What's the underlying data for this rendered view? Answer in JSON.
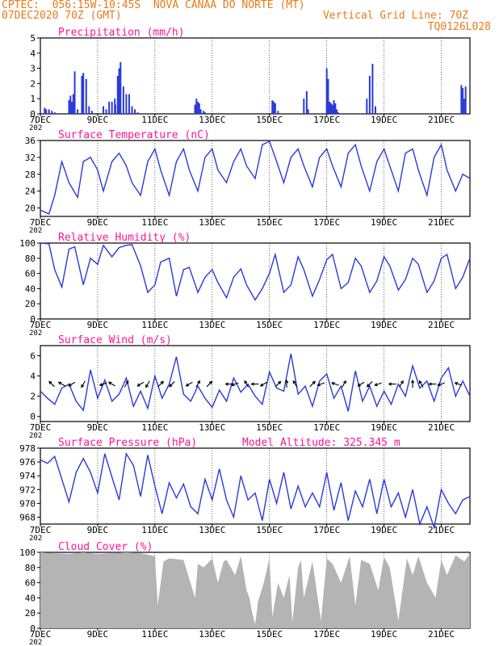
{
  "header": {
    "line1_left": "CPTEC:  056:15W-10:45S  NOVA CANAA DO NORTE (MT)",
    "line2_left": "07DEC2020 70Z (GMT)",
    "line2_right": "Vertical Grid Line: 70Z",
    "line3_right": "TQ0126L028"
  },
  "colors": {
    "header": "#e87a1a",
    "panel_title": "#ff1493",
    "line": "#2a3ad8",
    "bar": "#2a3ad8",
    "cloud": "#b4b4b4",
    "wind_arrow": "#000000"
  },
  "x_axis": {
    "ticks": [
      "7DEC",
      "9DEC",
      "11DEC",
      "13DEC",
      "15DEC",
      "17DEC",
      "19DEC",
      "21DEC"
    ],
    "tick_days": [
      0,
      2,
      4,
      6,
      8,
      10,
      12,
      14
    ],
    "start_cut_label": "202",
    "days_total": 15
  },
  "chart_data": [
    {
      "type": "bar",
      "title": "Precipitation (mm/h)",
      "ylim": [
        0,
        5
      ],
      "yticks": [
        0,
        1,
        2,
        3,
        4,
        5
      ],
      "x_unit": "days since 7DEC2020 00Z",
      "x": [
        0.15,
        0.2,
        0.3,
        0.4,
        0.5,
        1.0,
        1.05,
        1.1,
        1.15,
        1.2,
        1.3,
        1.45,
        1.5,
        1.6,
        1.7,
        1.8,
        2.2,
        2.3,
        2.4,
        2.5,
        2.6,
        2.62,
        2.7,
        2.75,
        2.8,
        2.9,
        3.0,
        3.1,
        3.2,
        3.3,
        3.4,
        5.4,
        5.45,
        5.5,
        5.55,
        5.6,
        5.7,
        5.75,
        8.1,
        8.15,
        8.2,
        8.3,
        9.2,
        9.3,
        9.35,
        10.0,
        10.05,
        10.1,
        10.15,
        10.2,
        10.25,
        10.3,
        10.35,
        10.4,
        11.4,
        11.5,
        11.6,
        11.7,
        14.7,
        14.75,
        14.8,
        14.85
      ],
      "values": [
        0.4,
        0.3,
        0.3,
        0.2,
        0.1,
        0.9,
        1.2,
        0.8,
        1.3,
        2.8,
        0.3,
        2.5,
        2.7,
        2.3,
        0.5,
        0.2,
        0.5,
        0.3,
        0.8,
        0.8,
        1.0,
        0.6,
        2.5,
        3.0,
        3.4,
        1.8,
        1.3,
        1.3,
        0.5,
        0.3,
        0.1,
        0.6,
        1.0,
        0.8,
        0.7,
        0.3,
        0.2,
        0.1,
        0.9,
        0.8,
        0.7,
        0.2,
        1.0,
        1.5,
        0.3,
        3.0,
        2.3,
        0.8,
        0.7,
        0.6,
        0.9,
        0.7,
        0.3,
        0.1,
        1.0,
        2.5,
        3.3,
        0.5,
        1.9,
        1.7,
        1.0,
        1.8
      ]
    },
    {
      "type": "line",
      "title": "Surface Temperature (nC)",
      "ylim": [
        18,
        36
      ],
      "yticks": [
        20,
        24,
        28,
        32,
        36
      ],
      "x_unit": "days since 7DEC2020 00Z",
      "x": [
        0,
        0.3,
        0.5,
        0.75,
        1,
        1.3,
        1.5,
        1.75,
        2,
        2.2,
        2.5,
        2.75,
        3,
        3.2,
        3.5,
        3.75,
        4,
        4.2,
        4.5,
        4.75,
        5,
        5.2,
        5.5,
        5.75,
        6,
        6.2,
        6.5,
        6.75,
        7,
        7.2,
        7.5,
        7.75,
        8,
        8.2,
        8.5,
        8.75,
        9,
        9.2,
        9.5,
        9.75,
        10,
        10.2,
        10.5,
        10.75,
        11,
        11.2,
        11.5,
        11.75,
        12,
        12.2,
        12.5,
        12.75,
        13,
        13.2,
        13.5,
        13.75,
        14,
        14.2,
        14.5,
        14.75,
        15
      ],
      "values": [
        19.5,
        18.6,
        23,
        31,
        26,
        22.5,
        31,
        32,
        29,
        24,
        31,
        33,
        30,
        26,
        23,
        31,
        34,
        29,
        23,
        31,
        34,
        29,
        24,
        32,
        34,
        29,
        26,
        31,
        34,
        30,
        27,
        35,
        35.8,
        32,
        26,
        32,
        34,
        30,
        25,
        32,
        34,
        30,
        25,
        33,
        35,
        30,
        24,
        31,
        34,
        30,
        24,
        33,
        34,
        29,
        23,
        32,
        35,
        29,
        24,
        28,
        27
      ]
    },
    {
      "type": "line",
      "title": "Relative Humidity (%)",
      "ylim": [
        0,
        100
      ],
      "yticks": [
        0,
        20,
        40,
        60,
        80,
        100
      ],
      "x_unit": "days since 7DEC2020 00Z",
      "x": [
        0,
        0.3,
        0.5,
        0.75,
        1,
        1.2,
        1.5,
        1.75,
        2,
        2.2,
        2.5,
        2.75,
        3,
        3.2,
        3.5,
        3.75,
        4,
        4.2,
        4.5,
        4.75,
        5,
        5.2,
        5.5,
        5.75,
        6,
        6.2,
        6.5,
        6.75,
        7,
        7.2,
        7.5,
        7.75,
        8,
        8.2,
        8.5,
        8.75,
        9,
        9.2,
        9.5,
        9.75,
        10,
        10.2,
        10.5,
        10.75,
        11,
        11.2,
        11.5,
        11.75,
        12,
        12.2,
        12.5,
        12.75,
        13,
        13.2,
        13.5,
        13.75,
        14,
        14.2,
        14.5,
        14.75,
        15
      ],
      "values": [
        100,
        99,
        65,
        42,
        92,
        95,
        45,
        80,
        72,
        97,
        82,
        94,
        97,
        98,
        70,
        35,
        45,
        75,
        80,
        30,
        65,
        68,
        35,
        55,
        65,
        48,
        28,
        55,
        66,
        45,
        25,
        40,
        60,
        85,
        35,
        45,
        82,
        65,
        30,
        52,
        78,
        85,
        40,
        48,
        80,
        70,
        35,
        50,
        82,
        70,
        38,
        52,
        80,
        72,
        35,
        50,
        80,
        85,
        40,
        55,
        80
      ]
    },
    {
      "type": "line",
      "title": "Surface Wind (m/s)",
      "ylim": [
        -0.5,
        7
      ],
      "yticks": [
        0,
        2,
        4,
        6
      ],
      "x_unit": "days since 7DEC2020 00Z",
      "x": [
        0,
        0.25,
        0.5,
        0.75,
        1,
        1.25,
        1.5,
        1.75,
        2,
        2.25,
        2.5,
        2.75,
        3,
        3.25,
        3.5,
        3.75,
        4,
        4.25,
        4.5,
        4.75,
        5,
        5.25,
        5.5,
        5.75,
        6,
        6.25,
        6.5,
        6.75,
        7,
        7.25,
        7.5,
        7.75,
        8,
        8.25,
        8.5,
        8.75,
        9,
        9.25,
        9.5,
        9.75,
        10,
        10.25,
        10.5,
        10.75,
        11,
        11.25,
        11.5,
        11.75,
        12,
        12.25,
        12.5,
        12.75,
        13,
        13.25,
        13.5,
        13.75,
        14,
        14.25,
        14.5,
        14.75,
        15
      ],
      "values": [
        2.5,
        1.8,
        1.2,
        2.8,
        3.2,
        1.5,
        0.6,
        4.6,
        1.8,
        3.6,
        1.5,
        2.2,
        3.8,
        1.0,
        2.5,
        0.8,
        4.0,
        1.8,
        3.2,
        5.9,
        2.2,
        1.5,
        3.0,
        1.8,
        0.9,
        2.6,
        1.5,
        3.8,
        2.4,
        3.2,
        2.0,
        1.2,
        4.4,
        2.8,
        2.5,
        6.2,
        2.2,
        3.0,
        1.0,
        3.5,
        4.2,
        1.8,
        3.0,
        0.5,
        4.5,
        1.5,
        3.0,
        1.0,
        2.5,
        1.2,
        3.2,
        2.0,
        5.0,
        2.8,
        3.5,
        1.5,
        3.8,
        4.8,
        2.0,
        3.5,
        2.0
      ],
      "arrows_x": [
        0.4,
        0.75,
        1.1,
        1.5,
        2.2,
        2.5,
        3.0,
        3.5,
        3.75,
        4.2,
        4.6,
        5.2,
        5.5,
        5.9,
        6.6,
        6.8,
        7.2,
        7.5,
        7.8,
        8.3,
        8.6,
        8.9,
        9.5,
        9.8,
        10.3,
        10.6,
        11.2,
        11.5,
        11.8,
        12.3,
        12.6,
        13.0,
        13.3,
        13.7,
        14.0,
        14.6
      ],
      "arrows_deg": [
        135,
        150,
        210,
        240,
        200,
        150,
        60,
        210,
        240,
        45,
        225,
        210,
        60,
        45,
        180,
        200,
        120,
        180,
        210,
        45,
        90,
        120,
        45,
        200,
        160,
        60,
        210,
        225,
        200,
        180,
        60,
        90,
        120,
        180,
        200,
        160
      ]
    },
    {
      "type": "line",
      "title": "Surface Pressure (hPa)",
      "annotation": "Model Altitude: 325.345 m",
      "ylim": [
        967,
        978
      ],
      "yticks": [
        968,
        970,
        972,
        974,
        976,
        978
      ],
      "x_unit": "days since 7DEC2020 00Z",
      "x": [
        0,
        0.25,
        0.5,
        0.75,
        1,
        1.25,
        1.5,
        1.75,
        2,
        2.25,
        2.5,
        2.75,
        3,
        3.25,
        3.5,
        3.75,
        4,
        4.25,
        4.5,
        4.75,
        5,
        5.25,
        5.5,
        5.75,
        6,
        6.25,
        6.5,
        6.75,
        7,
        7.25,
        7.5,
        7.75,
        8,
        8.25,
        8.5,
        8.75,
        9,
        9.25,
        9.5,
        9.75,
        10,
        10.25,
        10.5,
        10.75,
        11,
        11.25,
        11.5,
        11.75,
        12,
        12.25,
        12.5,
        12.75,
        13,
        13.25,
        13.5,
        13.75,
        14,
        14.25,
        14.5,
        14.75,
        15
      ],
      "values": [
        976.3,
        975.8,
        976.8,
        973.5,
        970.2,
        974.5,
        976.5,
        974.5,
        971.5,
        977.2,
        973.8,
        970.5,
        977.2,
        975.5,
        971.0,
        977.0,
        972.5,
        968.5,
        973.0,
        970.8,
        972.8,
        969.5,
        968.5,
        973.5,
        970.5,
        975.0,
        970.5,
        968.0,
        974.0,
        970.5,
        971.5,
        967.5,
        973.5,
        970.0,
        974.5,
        969.2,
        972.5,
        969.5,
        971.5,
        969.5,
        974.5,
        969.0,
        973.0,
        967.5,
        971.8,
        969.5,
        973.5,
        968.5,
        973.5,
        969.5,
        971.5,
        968.0,
        972.0,
        967.0,
        969.5,
        966.5,
        972.0,
        970.0,
        968.5,
        970.5,
        971.0
      ]
    },
    {
      "type": "area",
      "title": "Cloud Cover (%)",
      "ylim": [
        0,
        100
      ],
      "yticks": [
        0,
        20,
        40,
        60,
        80,
        100
      ],
      "x_unit": "days since 7DEC2020 00Z",
      "x": [
        0,
        0.5,
        1,
        1.5,
        2,
        2.5,
        3,
        3.5,
        4,
        4.1,
        4.3,
        4.5,
        5,
        5.4,
        5.5,
        5.7,
        6,
        6.2,
        6.4,
        6.5,
        6.8,
        7,
        7.2,
        7.3,
        7.4,
        7.5,
        7.6,
        7.8,
        8,
        8.1,
        8.3,
        8.5,
        8.7,
        8.8,
        9,
        9.1,
        9.2,
        9.5,
        9.8,
        10,
        10.2,
        10.5,
        10.8,
        11,
        11.2,
        11.5,
        11.8,
        12,
        12.2,
        12.5,
        12.8,
        13,
        13.2,
        13.5,
        13.8,
        14,
        14.2,
        14.5,
        14.8,
        15
      ],
      "values": [
        100,
        99,
        98,
        100,
        98,
        99,
        100,
        99,
        95,
        30,
        88,
        92,
        90,
        40,
        85,
        80,
        92,
        60,
        88,
        90,
        70,
        95,
        50,
        40,
        20,
        5,
        35,
        60,
        92,
        15,
        60,
        40,
        70,
        8,
        80,
        90,
        40,
        88,
        10,
        92,
        85,
        60,
        95,
        30,
        90,
        85,
        50,
        94,
        80,
        10,
        92,
        70,
        95,
        60,
        40,
        90,
        70,
        96,
        88,
        98
      ]
    }
  ]
}
